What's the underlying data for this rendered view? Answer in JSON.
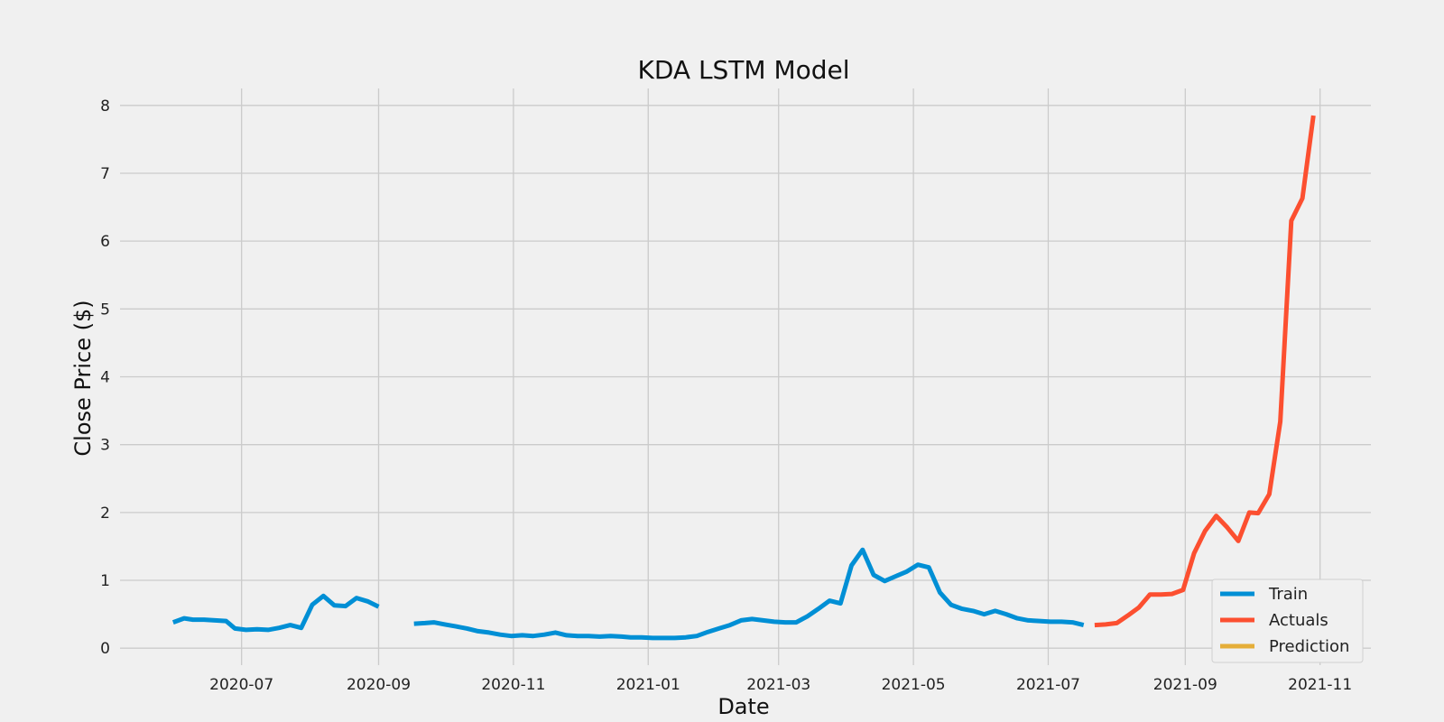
{
  "chart_data": {
    "type": "line",
    "title": "KDA LSTM Model",
    "xlabel": "Date",
    "ylabel": "Close Price ($)",
    "xlim": [
      "2020-05-07",
      "2021-11-24"
    ],
    "ylim": [
      -0.25,
      8.25
    ],
    "x_ticks": [
      "2020-07-01",
      "2020-09-01",
      "2020-11-01",
      "2021-01-01",
      "2021-03-01",
      "2021-05-01",
      "2021-07-01",
      "2021-09-01",
      "2021-11-01"
    ],
    "x_tick_labels": [
      "2020-07",
      "2020-09",
      "2020-11",
      "2021-01",
      "2021-03",
      "2021-05",
      "2021-07",
      "2021-09",
      "2021-11"
    ],
    "y_ticks": [
      0,
      1,
      2,
      3,
      4,
      5,
      6,
      7,
      8
    ],
    "y_tick_labels": [
      "0",
      "1",
      "2",
      "3",
      "4",
      "5",
      "6",
      "7",
      "8"
    ],
    "grid": true,
    "legend_position": "bottom-right",
    "series": [
      {
        "name": "Train",
        "color": "#008fd5",
        "segments": [
          {
            "x": [
              "2020-05-31",
              "2020-06-05",
              "2020-06-09",
              "2020-06-14",
              "2020-06-19",
              "2020-06-24",
              "2020-06-28",
              "2020-07-03",
              "2020-07-08",
              "2020-07-13",
              "2020-07-18",
              "2020-07-23",
              "2020-07-28",
              "2020-08-02",
              "2020-08-07",
              "2020-08-12",
              "2020-08-17",
              "2020-08-22",
              "2020-08-27",
              "2020-09-01"
            ],
            "y": [
              0.38,
              0.44,
              0.42,
              0.42,
              0.41,
              0.4,
              0.29,
              0.27,
              0.28,
              0.27,
              0.3,
              0.34,
              0.3,
              0.64,
              0.77,
              0.63,
              0.62,
              0.74,
              0.69,
              0.61
            ]
          },
          {
            "x": [
              "2020-09-17",
              "2020-09-22",
              "2020-09-26",
              "2020-10-01",
              "2020-10-06",
              "2020-10-11",
              "2020-10-16",
              "2020-10-21",
              "2020-10-26",
              "2020-10-31",
              "2020-11-05",
              "2020-11-10",
              "2020-11-15",
              "2020-11-20",
              "2020-11-25",
              "2020-11-30",
              "2020-12-05",
              "2020-12-10",
              "2020-12-15",
              "2020-12-20",
              "2020-12-24",
              "2020-12-29",
              "2021-01-03",
              "2021-01-08",
              "2021-01-13",
              "2021-01-18",
              "2021-01-23",
              "2021-01-28",
              "2021-02-02",
              "2021-02-07",
              "2021-02-12",
              "2021-02-17",
              "2021-02-22",
              "2021-02-27",
              "2021-03-04",
              "2021-03-09",
              "2021-03-14",
              "2021-03-19",
              "2021-03-24",
              "2021-03-29",
              "2021-04-03",
              "2021-04-08",
              "2021-04-13",
              "2021-04-18",
              "2021-04-23",
              "2021-04-28",
              "2021-05-03",
              "2021-05-08",
              "2021-05-13",
              "2021-05-18",
              "2021-05-23",
              "2021-05-28",
              "2021-06-02",
              "2021-06-07",
              "2021-06-12",
              "2021-06-17",
              "2021-06-22",
              "2021-06-27",
              "2021-07-02",
              "2021-07-07",
              "2021-07-12",
              "2021-07-17"
            ],
            "y": [
              0.36,
              0.37,
              0.38,
              0.35,
              0.32,
              0.29,
              0.25,
              0.23,
              0.2,
              0.18,
              0.19,
              0.18,
              0.2,
              0.23,
              0.19,
              0.18,
              0.18,
              0.17,
              0.18,
              0.17,
              0.16,
              0.16,
              0.15,
              0.15,
              0.15,
              0.16,
              0.18,
              0.24,
              0.29,
              0.34,
              0.41,
              0.43,
              0.41,
              0.39,
              0.38,
              0.38,
              0.47,
              0.58,
              0.7,
              0.66,
              1.22,
              1.45,
              1.08,
              0.99,
              1.06,
              1.13,
              1.23,
              1.19,
              0.82,
              0.64,
              0.58,
              0.55,
              0.5,
              0.55,
              0.5,
              0.44,
              0.41,
              0.4,
              0.39,
              0.39,
              0.38,
              0.34
            ]
          }
        ]
      },
      {
        "name": "Actuals",
        "color": "#fc4f30",
        "segments": [
          {
            "x": [
              "2021-07-22",
              "2021-07-27",
              "2021-08-01",
              "2021-08-06",
              "2021-08-11",
              "2021-08-16",
              "2021-08-21",
              "2021-08-26",
              "2021-08-31",
              "2021-09-05",
              "2021-09-10",
              "2021-09-15",
              "2021-09-20",
              "2021-09-25",
              "2021-09-30",
              "2021-10-04",
              "2021-10-09",
              "2021-10-14",
              "2021-10-19",
              "2021-10-24",
              "2021-10-29"
            ],
            "y": [
              0.34,
              0.35,
              0.37,
              0.48,
              0.6,
              0.79,
              0.79,
              0.8,
              0.86,
              1.4,
              1.73,
              1.95,
              1.78,
              1.58,
              2.0,
              1.99,
              2.27,
              3.34,
              6.3,
              6.63,
              7.85
            ]
          }
        ]
      },
      {
        "name": "Prediction",
        "color": "#e5ae38",
        "segments": []
      }
    ]
  }
}
